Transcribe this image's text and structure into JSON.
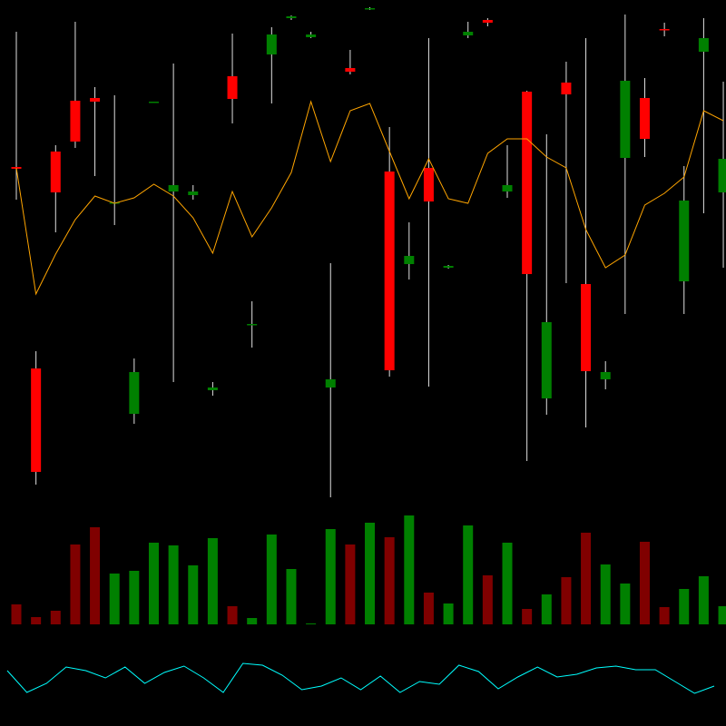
{
  "chart_data": [
    {
      "type": "candlestick",
      "open": [
        36.6,
        14.4,
        38.3,
        43.9,
        44.2,
        32.7,
        9.4,
        43.7,
        33.9,
        33.5,
        12.0,
        46.6,
        19.2,
        49.0,
        53.0,
        50.9,
        12.3,
        47.5,
        54.0,
        36.1,
        25.9,
        36.5,
        25.5,
        51.1,
        52.8,
        33.9,
        44.9,
        11.1,
        45.9,
        23.7,
        13.2,
        37.6,
        44.2,
        51.8,
        24.0,
        49.3,
        33.8
      ],
      "high": [
        51.5,
        16.3,
        39.0,
        52.6,
        45.4,
        44.5,
        15.5,
        43.8,
        48.0,
        34.6,
        12.9,
        51.3,
        21.8,
        52.0,
        53.3,
        51.5,
        26.0,
        49.5,
        54.2,
        41.0,
        30.5,
        50.8,
        25.8,
        52.6,
        53.0,
        39.0,
        45.0,
        40.2,
        48.2,
        50.8,
        15.2,
        53.4,
        46.4,
        52.5,
        36.7,
        53.0,
        46.0
      ],
      "low": [
        33.0,
        1.6,
        29.4,
        38.7,
        35.6,
        30.2,
        8.3,
        43.7,
        12.9,
        33.0,
        11.4,
        41.4,
        16.7,
        43.6,
        52.8,
        50.8,
        0.2,
        46.8,
        53.9,
        13.5,
        24.2,
        12.4,
        25.4,
        50.8,
        52.1,
        33.2,
        4.2,
        9.3,
        23.8,
        7.9,
        12.1,
        20.4,
        37.7,
        51.0,
        20.4,
        31.5,
        25.5
      ],
      "close": [
        36.4,
        3.0,
        33.8,
        39.4,
        43.8,
        32.7,
        14.0,
        43.8,
        34.6,
        33.9,
        12.3,
        44.1,
        19.3,
        51.2,
        53.2,
        51.2,
        13.2,
        47.1,
        54.1,
        14.2,
        26.8,
        32.8,
        25.7,
        51.5,
        52.5,
        34.6,
        24.8,
        19.5,
        44.6,
        14.1,
        14.0,
        46.1,
        39.7,
        51.7,
        32.9,
        50.8,
        37.5
      ],
      "up_color": "#008000",
      "down_color": "#ff0000",
      "wick_color": "#e0e0e0",
      "ylim": [
        0,
        55
      ],
      "overlay": {
        "type": "line",
        "color": "#ffa500",
        "values": [
          36.5,
          22.6,
          27.0,
          30.8,
          33.4,
          32.6,
          33.2,
          34.7,
          33.4,
          31.0,
          27.1,
          33.9,
          28.9,
          32.1,
          36.0,
          43.8,
          37.2,
          42.8,
          43.6,
          38.3,
          33.1,
          37.5,
          33.1,
          32.6,
          38.1,
          39.7,
          39.7,
          37.7,
          36.5,
          29.7,
          25.5,
          26.9,
          32.4,
          33.7,
          35.5,
          42.8,
          41.7
        ]
      }
    },
    {
      "type": "bar",
      "values": [
        2.2,
        0.8,
        1.5,
        8.8,
        10.7,
        5.6,
        5.9,
        9.0,
        8.7,
        6.5,
        9.5,
        2.0,
        0.7,
        9.9,
        6.1,
        0.1,
        10.5,
        8.8,
        11.2,
        9.6,
        12.0,
        3.5,
        2.3,
        10.9,
        5.4,
        9.0,
        1.7,
        3.3,
        5.2,
        10.1,
        6.6,
        4.5,
        9.1,
        1.9,
        3.9,
        5.3,
        2.0
      ],
      "up_color": "#008000",
      "down_color": "#800000",
      "ylim": [
        0,
        12
      ]
    },
    {
      "type": "line",
      "values": [
        6.1,
        3.7,
        4.7,
        6.5,
        6.1,
        5.3,
        6.5,
        4.7,
        5.9,
        6.6,
        5.3,
        3.7,
        6.9,
        6.7,
        5.6,
        4.0,
        4.4,
        5.3,
        4.0,
        5.5,
        3.7,
        4.9,
        4.6,
        6.7,
        6.0,
        4.1,
        5.4,
        6.5,
        5.4,
        5.7,
        6.4,
        6.6,
        6.2,
        6.2,
        4.9,
        3.6,
        4.4
      ],
      "color": "#00ffff",
      "ylim": [
        3,
        7
      ]
    }
  ]
}
